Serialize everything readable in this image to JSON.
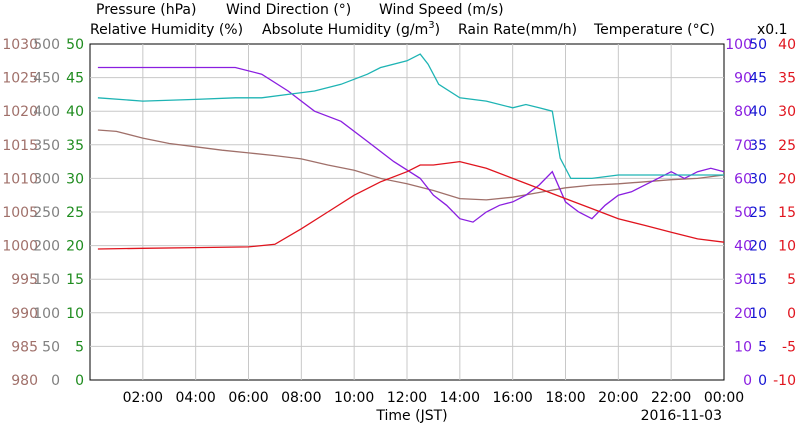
{
  "chart_data": {
    "type": "line",
    "date": "2016-11-03",
    "xlabel": "Time (JST)",
    "x_tick_labels": [
      "02:00",
      "04:00",
      "06:00",
      "08:00",
      "10:00",
      "12:00",
      "14:00",
      "16:00",
      "18:00",
      "20:00",
      "22:00",
      "00:00"
    ],
    "xlim_hours": [
      0,
      24
    ],
    "legend": {
      "pressure": "Pressure (hPa)",
      "wind_direction": "Wind Direction (°)",
      "wind_speed": "Wind Speed (m/s)",
      "relative_humidity": "Relative Humidity (%)",
      "absolute_humidity_prefix": "Absolute Humidity (g/m",
      "absolute_humidity_sup": "3",
      "absolute_humidity_suffix": ")",
      "rain_rate": "Rain Rate(mm/h)",
      "temperature": "Temperature (°C)",
      "x01": "x0.1"
    },
    "axes": {
      "pressure": {
        "color": "#a0706a",
        "ticks": [
          "980",
          "985",
          "990",
          "995",
          "1000",
          "1005",
          "1010",
          "1015",
          "1020",
          "1025",
          "1030"
        ],
        "ylim": [
          980,
          1030
        ]
      },
      "wind_direction": {
        "color": "#808080",
        "ticks": [
          "0",
          "50",
          "100",
          "150",
          "200",
          "250",
          "300",
          "350",
          "400",
          "450",
          "500"
        ],
        "ylim": [
          0,
          500
        ]
      },
      "wind_speed": {
        "color": "#1f8c1f",
        "ticks": [
          "0",
          "5",
          "10",
          "15",
          "20",
          "25",
          "30",
          "35",
          "40",
          "45",
          "50"
        ],
        "ylim": [
          0,
          50
        ]
      },
      "relative_humidity": {
        "color": "#8a1ee0",
        "ticks": [
          "0",
          "10",
          "20",
          "30",
          "40",
          "50",
          "60",
          "70",
          "80",
          "90",
          "100"
        ],
        "ylim": [
          0,
          100
        ]
      },
      "rain_rate": {
        "color": "#1414d2",
        "ticks": [
          "0",
          "5",
          "10",
          "15",
          "20",
          "25",
          "30",
          "35",
          "40",
          "45",
          "50"
        ],
        "ylim": [
          0,
          50
        ]
      },
      "temperature": {
        "color": "#e0141e",
        "ticks": [
          "-10",
          "-5",
          "0",
          "5",
          "10",
          "15",
          "20",
          "25",
          "30",
          "35",
          "40"
        ],
        "ylim": [
          -10,
          40
        ]
      }
    },
    "grid": true,
    "series": [
      {
        "name": "Pressure (hPa)",
        "color": "#a0706a",
        "x": [
          0.3,
          1,
          2,
          3,
          4,
          5,
          6,
          7,
          8,
          9,
          10,
          11,
          12,
          13,
          14,
          15,
          16,
          17,
          18,
          19,
          20,
          21,
          22,
          23,
          24
        ],
        "y": [
          1017.2,
          1017,
          1016,
          1015.2,
          1014.7,
          1014.2,
          1013.8,
          1013.4,
          1012.9,
          1012,
          1011.2,
          1010,
          1009.2,
          1008.2,
          1007,
          1006.8,
          1007.2,
          1007.9,
          1008.6,
          1009,
          1009.2,
          1009.5,
          1009.8,
          1010,
          1010.5
        ]
      },
      {
        "name": "Relative Humidity (%)",
        "color": "#8a1ee0",
        "x": [
          0.3,
          2,
          4,
          5.5,
          6.5,
          7.5,
          8.5,
          9.5,
          10.5,
          11.5,
          12.5,
          13,
          13.5,
          14,
          14.5,
          15,
          15.5,
          16,
          16.5,
          17,
          17.5,
          18,
          18.5,
          19,
          19.5,
          20,
          20.5,
          21,
          21.5,
          22,
          22.5,
          23,
          23.5,
          24
        ],
        "y": [
          93,
          93,
          93,
          93,
          91,
          86,
          80,
          77,
          71,
          65,
          60,
          55,
          52,
          48,
          47,
          50,
          52,
          53,
          55,
          58,
          62,
          53,
          50,
          48,
          52,
          55,
          56,
          58,
          60,
          62,
          60,
          62,
          63,
          62
        ]
      },
      {
        "name": "Absolute Humidity (g/m3)",
        "color": "#1eb4b4",
        "x": [
          0.3,
          2,
          4,
          5.5,
          6.5,
          7.5,
          8.5,
          9.5,
          10.5,
          11,
          12,
          12.5,
          12.8,
          13.2,
          14,
          15,
          16,
          16.5,
          17,
          17.5,
          17.8,
          18.2,
          19,
          20,
          21,
          22,
          23,
          24
        ],
        "y": [
          84,
          83,
          83.5,
          84,
          84,
          85,
          86,
          88,
          91,
          93,
          95,
          97,
          94,
          88,
          84,
          83,
          81,
          82,
          81,
          80,
          66,
          60,
          60,
          61,
          61,
          61,
          61,
          61
        ]
      },
      {
        "name": "Temperature (°C)",
        "color": "#e0141e",
        "x": [
          0.3,
          2,
          4,
          6,
          7,
          8,
          9,
          10,
          11,
          12,
          12.5,
          13,
          14,
          15,
          16,
          17,
          18,
          19,
          20,
          21,
          22,
          23,
          24
        ],
        "y": [
          9.5,
          9.6,
          9.7,
          9.8,
          10.2,
          12.5,
          15,
          17.5,
          19.5,
          21,
          22,
          22,
          22.5,
          21.5,
          20,
          18.5,
          17,
          15.5,
          14,
          13,
          12,
          11,
          10.5
        ]
      }
    ]
  }
}
